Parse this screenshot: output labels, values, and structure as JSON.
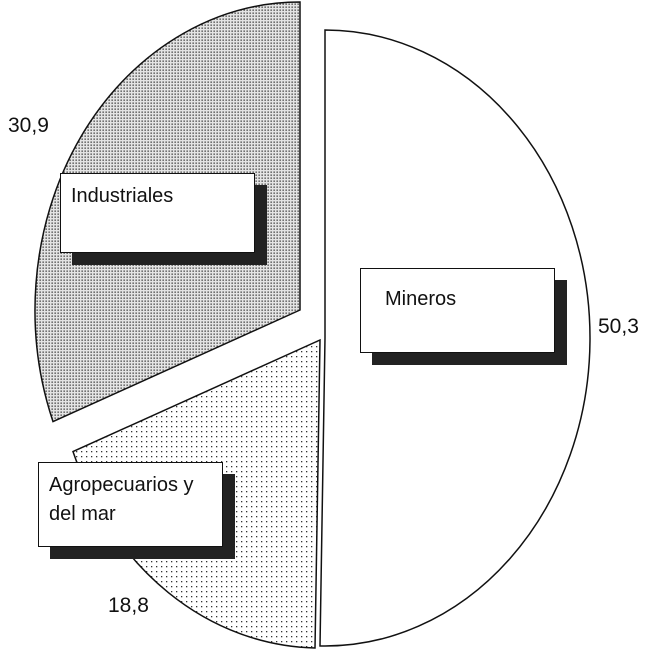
{
  "chart_data": {
    "type": "pie",
    "categories": [
      "Mineros",
      "Agropecuarios y del mar",
      "Industriales"
    ],
    "values": [
      50.3,
      18.8,
      30.9
    ],
    "value_labels": [
      "50,3",
      "18,8",
      "30,9"
    ]
  }
}
